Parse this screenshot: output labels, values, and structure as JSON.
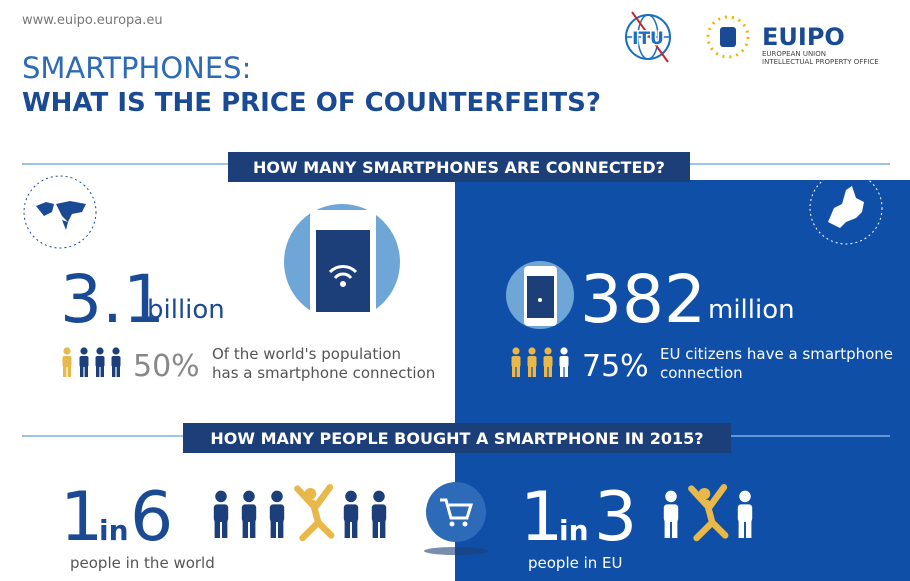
{
  "header": {
    "url": "www.euipo.europa.eu",
    "title_line1": "SMARTPHONES:",
    "title_line2": "WHAT IS THE PRICE OF COUNTERFEITS?"
  },
  "logos": {
    "itu": "ITU",
    "euipo": "EUIPO",
    "euipo_line1": "EUROPEAN UNION",
    "euipo_line2": "INTELLECTUAL PROPERTY OFFICE"
  },
  "connected": {
    "heading": "HOW MANY SMARTPHONES ARE CONNECTED?",
    "world": {
      "number": "3.1",
      "unit": "billion",
      "percent": "50%",
      "text_line1": "Of the world's population",
      "text_line2": "has a smartphone connection"
    },
    "eu": {
      "number": "382",
      "unit": "million",
      "percent": "75%",
      "text_line1": "EU citizens have a smartphone",
      "text_line2": "connection"
    }
  },
  "bought": {
    "heading": "HOW MANY PEOPLE BOUGHT A SMARTPHONE IN 2015?",
    "world": {
      "numerator": "1",
      "word": "in",
      "denominator": "6",
      "caption": "people in the world"
    },
    "eu": {
      "numerator": "1",
      "word": "in",
      "denominator": "3",
      "caption": "people in EU"
    }
  }
}
